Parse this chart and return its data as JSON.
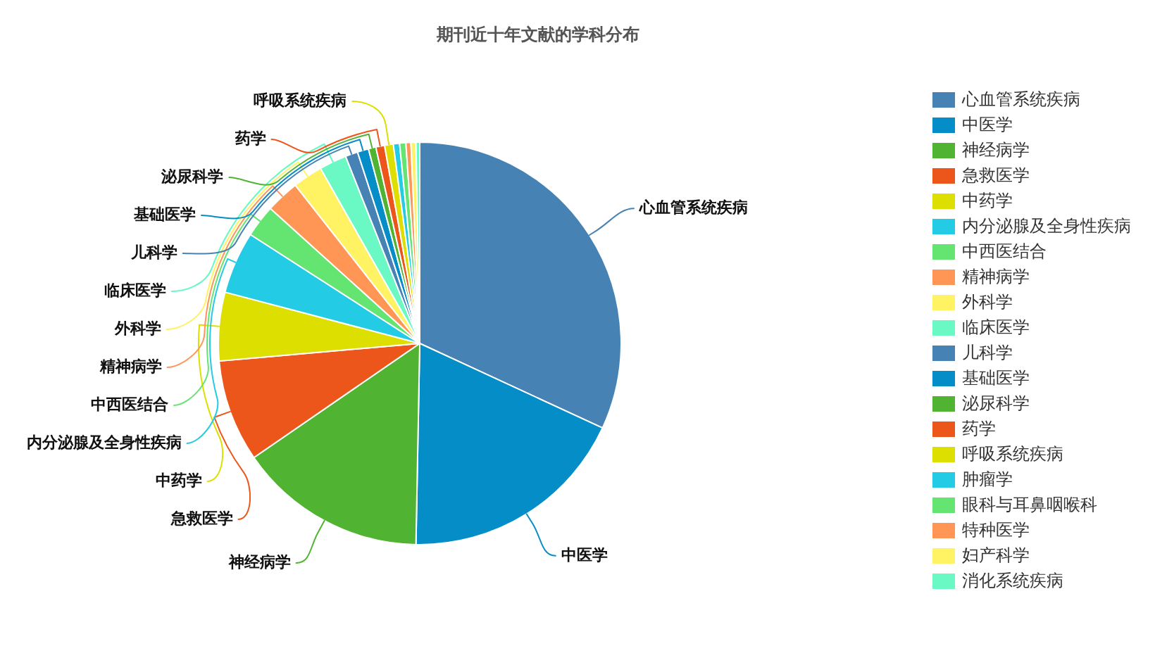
{
  "chart_data": {
    "type": "pie",
    "title": "期刊近十年文献的学科分布",
    "categories": [
      "心血管系统疾病",
      "中医学",
      "神经病学",
      "急救医学",
      "中药学",
      "内分泌腺及全身性疾病",
      "中西医结合",
      "精神病学",
      "外科学",
      "临床医学",
      "儿科学",
      "基础医学",
      "泌尿科学",
      "药学",
      "呼吸系统疾病",
      "肿瘤学",
      "眼科与耳鼻咽喉科",
      "特种医学",
      "妇产科学",
      "消化系统疾病"
    ],
    "values": [
      31.9,
      18.4,
      15.1,
      8.2,
      5.5,
      5.0,
      2.6,
      2.7,
      2.4,
      2.2,
      1.0,
      0.9,
      0.6,
      0.7,
      0.7,
      0.5,
      0.5,
      0.4,
      0.4,
      0.3
    ],
    "colors": [
      "#4682b4",
      "#058dc7",
      "#50b432",
      "#ed561b",
      "#dddf00",
      "#24cbe5",
      "#64e572",
      "#ff9655",
      "#fff263",
      "#6af9c4",
      "#4682b4",
      "#058dc7",
      "#50b432",
      "#ed561b",
      "#dddf00",
      "#24cbe5",
      "#64e572",
      "#ff9655",
      "#fff263",
      "#6af9c4"
    ],
    "legend": "right"
  }
}
